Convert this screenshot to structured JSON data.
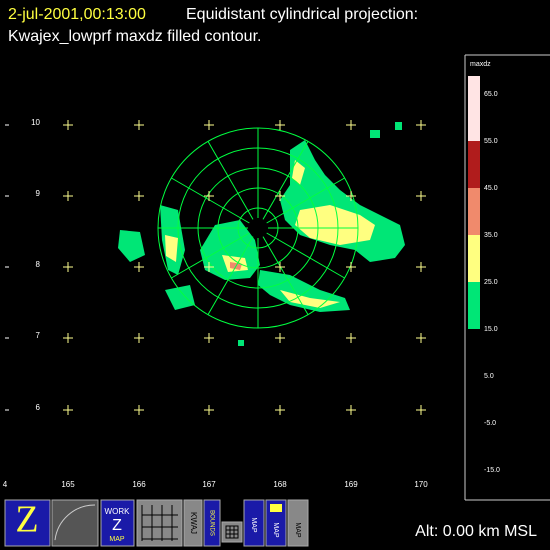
{
  "title": {
    "date": "2-jul-2001,00:13:00",
    "line1": "Equidistant cylindrical projection:",
    "line2": "Kwajex_lowprf maxdz filled contour."
  },
  "map": {
    "lat_labels": [
      "10",
      "9",
      "8",
      "7",
      "6"
    ],
    "lon_labels": [
      "4",
      "165",
      "166",
      "167",
      "168",
      "169",
      "170"
    ]
  },
  "colorbar": {
    "title": "maxdz",
    "labels": [
      "65.0",
      "55.0",
      "45.0",
      "35.0",
      "25.0",
      "15.0",
      "5.0",
      "-5.0",
      "-15.0"
    ],
    "colors": [
      "#ffe4e4",
      "#b01c1c",
      "#f08a6c",
      "#ffff80",
      "#00e676"
    ]
  },
  "toolbar": {
    "z": "Z",
    "work": "WORK",
    "work_z": "Z",
    "work_map": "MAP",
    "kwaj": "KWAJ",
    "bounds": "BOUNDS",
    "map1": "MAP",
    "map2": "MAP",
    "map3": "MAP"
  },
  "status": "Alt: 0.00 km MSL"
}
